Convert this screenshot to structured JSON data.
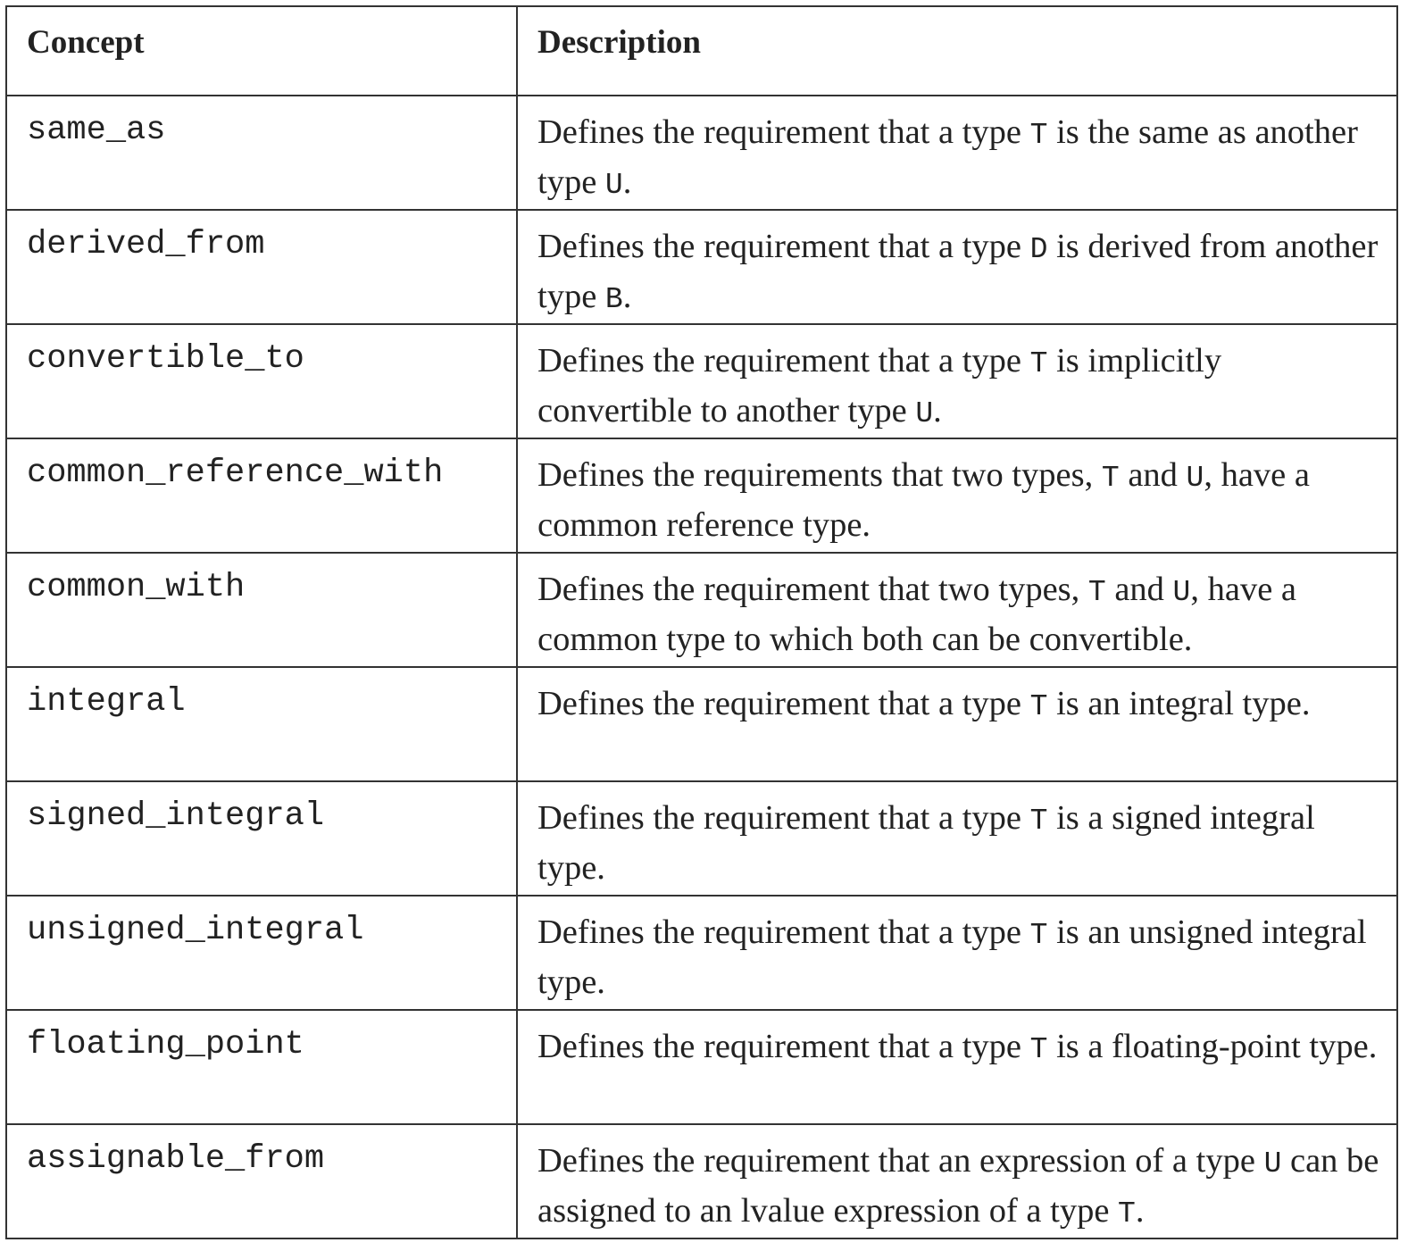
{
  "table": {
    "headers": {
      "concept": "Concept",
      "description": "Description"
    },
    "rows": [
      {
        "concept": "same_as",
        "description": [
          {
            "text": "Defines the requirement that a type "
          },
          {
            "code": "T"
          },
          {
            "text": " is the same as another type "
          },
          {
            "code": "U"
          },
          {
            "text": "."
          }
        ]
      },
      {
        "concept": "derived_from",
        "description": [
          {
            "text": "Defines the requirement that a type "
          },
          {
            "code": "D"
          },
          {
            "text": " is derived from another type "
          },
          {
            "code": "B"
          },
          {
            "text": "."
          }
        ]
      },
      {
        "concept": "convertible_to",
        "description": [
          {
            "text": "Defines the requirement that a type "
          },
          {
            "code": "T"
          },
          {
            "text": " is implicitly convertible to another type "
          },
          {
            "code": "U"
          },
          {
            "text": "."
          }
        ]
      },
      {
        "concept": "common_reference_with",
        "description": [
          {
            "text": "Defines the requirements that two types, "
          },
          {
            "code": "T"
          },
          {
            "text": " and "
          },
          {
            "code": "U"
          },
          {
            "text": ", have a common reference type."
          }
        ]
      },
      {
        "concept": "common_with",
        "description": [
          {
            "text": "Defines the requirement that two types, "
          },
          {
            "code": "T"
          },
          {
            "text": " and "
          },
          {
            "code": "U"
          },
          {
            "text": ", have a common type to which both can be convertible."
          }
        ]
      },
      {
        "concept": "integral",
        "description": [
          {
            "text": "Defines the requirement that a type "
          },
          {
            "code": "T"
          },
          {
            "text": " is an integral type."
          }
        ]
      },
      {
        "concept": "signed_integral",
        "description": [
          {
            "text": "Defines the requirement that a type "
          },
          {
            "code": "T"
          },
          {
            "text": " is a signed integral type."
          }
        ]
      },
      {
        "concept": "unsigned_integral",
        "description": [
          {
            "text": "Defines the requirement that a type "
          },
          {
            "code": "T"
          },
          {
            "text": " is an unsigned integral type."
          }
        ]
      },
      {
        "concept": "floating_point",
        "description": [
          {
            "text": "Defines the requirement that a type "
          },
          {
            "code": "T"
          },
          {
            "text": " is a floating-point type."
          }
        ]
      },
      {
        "concept": "assignable_from",
        "description": [
          {
            "text": "Defines the requirement that an expression of a type "
          },
          {
            "code": "U"
          },
          {
            "text": " can be assigned to an lvalue expression of a type "
          },
          {
            "code": "T"
          },
          {
            "text": "."
          }
        ]
      }
    ]
  }
}
